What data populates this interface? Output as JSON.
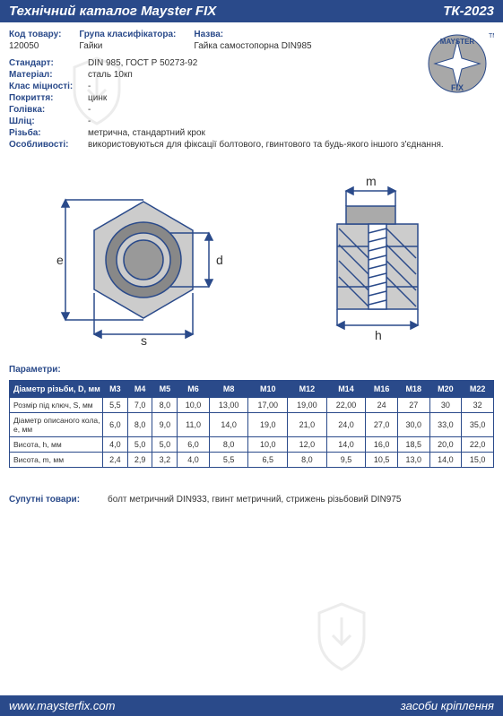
{
  "header": {
    "left": "Технічний каталог Mayster FIX",
    "right": "ТК-2023"
  },
  "top": {
    "code_label": "Код товару:",
    "code_value": "120050",
    "group_label": "Група класифікатора:",
    "group_value": "Гайки",
    "name_label": "Назва:",
    "name_value": "Гайка самостопорна DIN985"
  },
  "logo": {
    "brand": "MAYSTER",
    "brand2": "FIX",
    "tm": "TM",
    "circle_fill": "#a8a8a8",
    "circle_stroke": "#2a4a8a",
    "text_color": "#2a4a8a"
  },
  "specs": [
    {
      "label": "Стандарт:",
      "value": "DIN 985,  ГОСТ Р 50273-92"
    },
    {
      "label": "Матеріал:",
      "value": "сталь 10кп"
    },
    {
      "label": "Клас міцності:",
      "value": "-"
    },
    {
      "label": "Покриття:",
      "value": "цинк"
    },
    {
      "label": "Голівка:",
      "value": "-"
    },
    {
      "label": "Шліц:",
      "value": "-"
    },
    {
      "label": "Різьба:",
      "value": "метрична, стандартний крок"
    },
    {
      "label": "Особливості:",
      "value": "використовуються для фіксації болтового, гвинтового та будь-якого іншого з'єднання."
    }
  ],
  "diagram": {
    "labels": {
      "e": "e",
      "d": "d",
      "s": "s",
      "m": "m",
      "h": "h"
    },
    "line_color": "#2a4a8a",
    "fill_gray": "#cccccc",
    "fill_dark": "#666666"
  },
  "params_title": "Параметри:",
  "table": {
    "header_bg": "#2a4a8a",
    "header_fg": "#ffffff",
    "border": "#2a4a8a",
    "first_col_header": "Діаметр різьби, D, мм",
    "columns": [
      "M3",
      "M4",
      "M5",
      "M6",
      "M8",
      "M10",
      "M12",
      "M14",
      "M16",
      "M18",
      "M20",
      "M22"
    ],
    "rows": [
      {
        "label": "Розмір під ключ, S, мм",
        "cells": [
          "5,5",
          "7,0",
          "8,0",
          "10,0",
          "13,00",
          "17,00",
          "19,00",
          "22,00",
          "24",
          "27",
          "30",
          "32"
        ]
      },
      {
        "label": "Діаметр описаного кола, е, мм",
        "cells": [
          "6,0",
          "8,0",
          "9,0",
          "11,0",
          "14,0",
          "19,0",
          "21,0",
          "24,0",
          "27,0",
          "30,0",
          "33,0",
          "35,0"
        ]
      },
      {
        "label": "Висота, h, мм",
        "cells": [
          "4,0",
          "5,0",
          "5,0",
          "6,0",
          "8,0",
          "10,0",
          "12,0",
          "14,0",
          "16,0",
          "18,5",
          "20,0",
          "22,0"
        ]
      },
      {
        "label": "Висота, m, мм",
        "cells": [
          "2,4",
          "2,9",
          "3,2",
          "4,0",
          "5,5",
          "6,5",
          "8,0",
          "9,5",
          "10,5",
          "13,0",
          "14,0",
          "15,0"
        ]
      }
    ]
  },
  "related": {
    "label": "Супутні товари:",
    "value": "болт метричний DIN933, гвинт метричний, стрижень різьбовий DIN975"
  },
  "footer": {
    "left": "www.maysterfix.com",
    "right": "засоби кріплення"
  },
  "watermark_color": "#999999"
}
